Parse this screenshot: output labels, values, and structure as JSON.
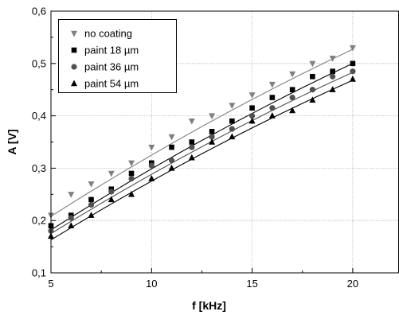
{
  "chart_data": {
    "type": "scatter",
    "title": "",
    "xlabel": "f [kHz]",
    "ylabel": "A [V]",
    "xlim": [
      5,
      22.3
    ],
    "ylim": [
      0.1,
      0.6
    ],
    "xticks": [
      5,
      10,
      15,
      20
    ],
    "xtick_labels": [
      "5",
      "10",
      "15",
      "20"
    ],
    "yticks": [
      0.1,
      0.2,
      0.3,
      0.4,
      0.5,
      0.6
    ],
    "ytick_labels": [
      "0,1",
      "0,2",
      "0,3",
      "0,4",
      "0,5",
      "0,6"
    ],
    "grid": true,
    "legend_position": "top-left",
    "series": [
      {
        "name": "no coating",
        "marker": "triangle-down",
        "color": "#808080",
        "x": [
          5,
          6,
          7,
          8,
          9,
          10,
          11,
          12,
          13,
          14,
          15,
          16,
          17,
          18,
          19,
          20
        ],
        "y": [
          0.21,
          0.25,
          0.27,
          0.29,
          0.31,
          0.34,
          0.36,
          0.39,
          0.4,
          0.42,
          0.44,
          0.46,
          0.48,
          0.5,
          0.51,
          0.53
        ],
        "fit": [
          [
            5,
            0.208
          ],
          [
            20,
            0.527
          ]
        ]
      },
      {
        "name": "paint 18 µm",
        "marker": "square",
        "color": "#000000",
        "x": [
          5,
          6,
          7,
          8,
          9,
          10,
          11,
          12,
          13,
          14,
          15,
          16,
          17,
          18,
          19,
          20
        ],
        "y": [
          0.19,
          0.21,
          0.24,
          0.26,
          0.29,
          0.31,
          0.34,
          0.35,
          0.37,
          0.39,
          0.415,
          0.435,
          0.45,
          0.475,
          0.485,
          0.5
        ],
        "fit": [
          [
            5,
            0.182
          ],
          [
            20,
            0.5
          ]
        ]
      },
      {
        "name": "paint 36 µm",
        "marker": "circle",
        "color": "#505050",
        "x": [
          5,
          6,
          7,
          8,
          9,
          10,
          11,
          12,
          13,
          14,
          15,
          16,
          17,
          18,
          19,
          20
        ],
        "y": [
          0.18,
          0.205,
          0.23,
          0.255,
          0.28,
          0.305,
          0.315,
          0.34,
          0.36,
          0.375,
          0.4,
          0.415,
          0.435,
          0.45,
          0.475,
          0.485
        ],
        "fit": [
          [
            5,
            0.175
          ],
          [
            20,
            0.483
          ]
        ]
      },
      {
        "name": "paint 54 µm",
        "marker": "triangle-up",
        "color": "#000000",
        "x": [
          5,
          6,
          7,
          8,
          9,
          10,
          11,
          12,
          13,
          14,
          15,
          16,
          17,
          18,
          19,
          20
        ],
        "y": [
          0.17,
          0.19,
          0.21,
          0.24,
          0.25,
          0.28,
          0.3,
          0.32,
          0.35,
          0.36,
          0.39,
          0.4,
          0.41,
          0.43,
          0.45,
          0.47
        ],
        "fit": [
          [
            5,
            0.163
          ],
          [
            20,
            0.468
          ]
        ]
      }
    ]
  }
}
